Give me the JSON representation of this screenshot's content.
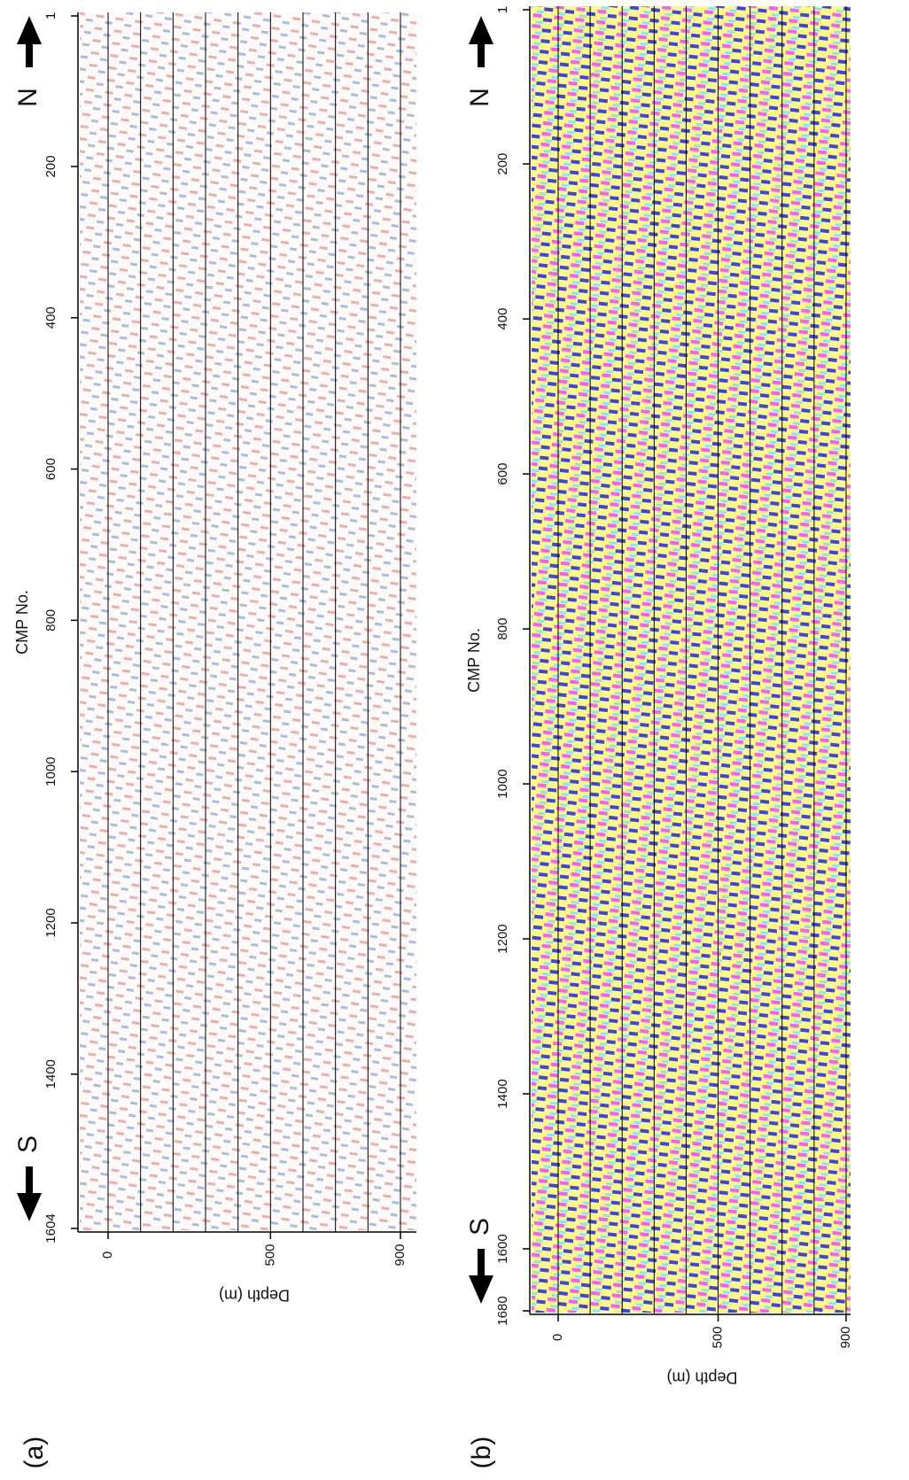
{
  "chart_data": [
    {
      "type": "seismic",
      "panel_label": "(a)",
      "x_label": "Depth (m)",
      "y_label": "CMP No.",
      "north_label": "N",
      "south_label": "S",
      "xlim": [
        0,
        900
      ],
      "xticks": [
        0,
        500,
        900
      ],
      "grid_lines": [
        0,
        100,
        200,
        300,
        400,
        500,
        600,
        700,
        800,
        900
      ],
      "ylim": [
        1,
        1604
      ],
      "yticks": [
        1,
        200,
        400,
        600,
        800,
        1000,
        1200,
        1400,
        1604
      ],
      "colors": [
        "#d62a2a",
        "#2a4fa8"
      ]
    },
    {
      "type": "seismic",
      "panel_label": "(b)",
      "x_label": "Depth (m)",
      "y_label": "CMP No.",
      "north_label": "N",
      "south_label": "S",
      "xlim": [
        0,
        900
      ],
      "xticks": [
        0,
        500,
        900
      ],
      "grid_lines": [
        0,
        100,
        200,
        300,
        400,
        500,
        600,
        700,
        800,
        900
      ],
      "ylim": [
        1,
        1680
      ],
      "yticks": [
        1,
        200,
        400,
        600,
        800,
        1000,
        1200,
        1400,
        1600,
        1680
      ],
      "colors": [
        "#ff1fff",
        "#1010e0",
        "#ffff00",
        "#30e0ff"
      ]
    }
  ]
}
